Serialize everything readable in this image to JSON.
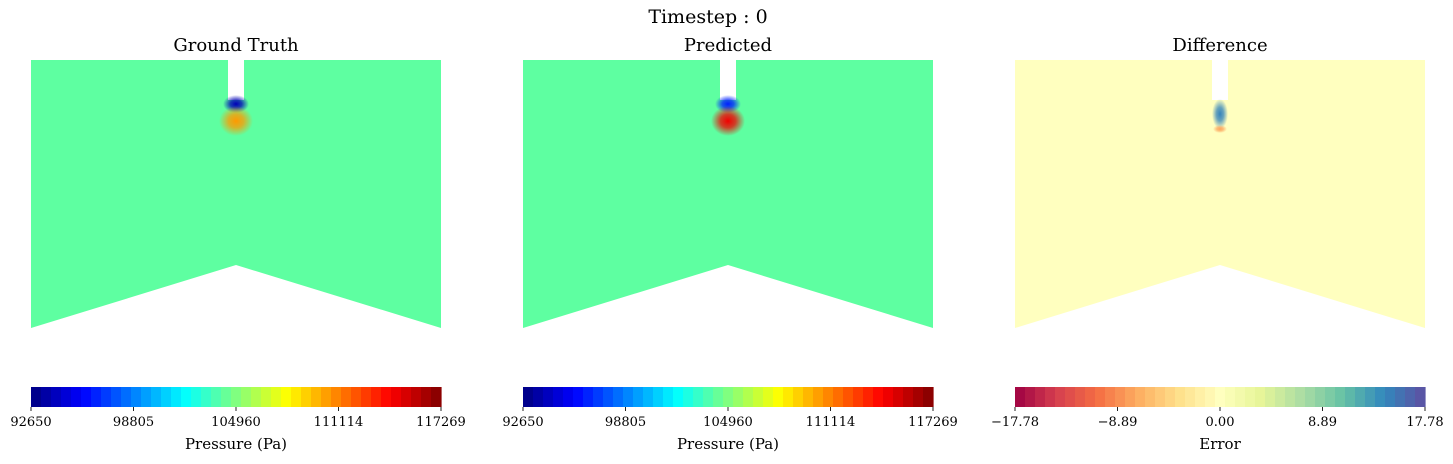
{
  "figure": {
    "suptitle": "Timestep : 0"
  },
  "chart_data": [
    {
      "type": "heatmap",
      "title": "Ground Truth",
      "colormap": "jet",
      "colorbar": {
        "label": "Pressure (Pa)",
        "range": [
          92650,
          117269
        ],
        "ticks": [
          "92650",
          "98805",
          "104960",
          "111114",
          "117269"
        ]
      },
      "field": {
        "background_value": 104150,
        "hotspots": [
          {
            "kind": "low",
            "value": 94000
          },
          {
            "kind": "high",
            "value": 110500
          }
        ]
      }
    },
    {
      "type": "heatmap",
      "title": "Predicted",
      "colormap": "jet",
      "colorbar": {
        "label": "Pressure (Pa)",
        "range": [
          92650,
          117269
        ],
        "ticks": [
          "92650",
          "98805",
          "104960",
          "111114",
          "117269"
        ]
      },
      "field": {
        "background_value": 104150,
        "hotspots": [
          {
            "kind": "low",
            "value": 96500
          },
          {
            "kind": "high",
            "value": 114500
          }
        ]
      }
    },
    {
      "type": "heatmap",
      "title": "Difference",
      "colormap": "Spectral",
      "colorbar": {
        "label": "Error",
        "range": [
          -17.78,
          17.78
        ],
        "ticks": [
          "−17.78",
          "−8.89",
          "0.00",
          "8.89",
          "17.78"
        ]
      },
      "field": {
        "background_value": 0.0,
        "hotspots": [
          {
            "kind": "high",
            "value": 14.5
          },
          {
            "kind": "low",
            "value": -7.5
          }
        ]
      }
    }
  ]
}
